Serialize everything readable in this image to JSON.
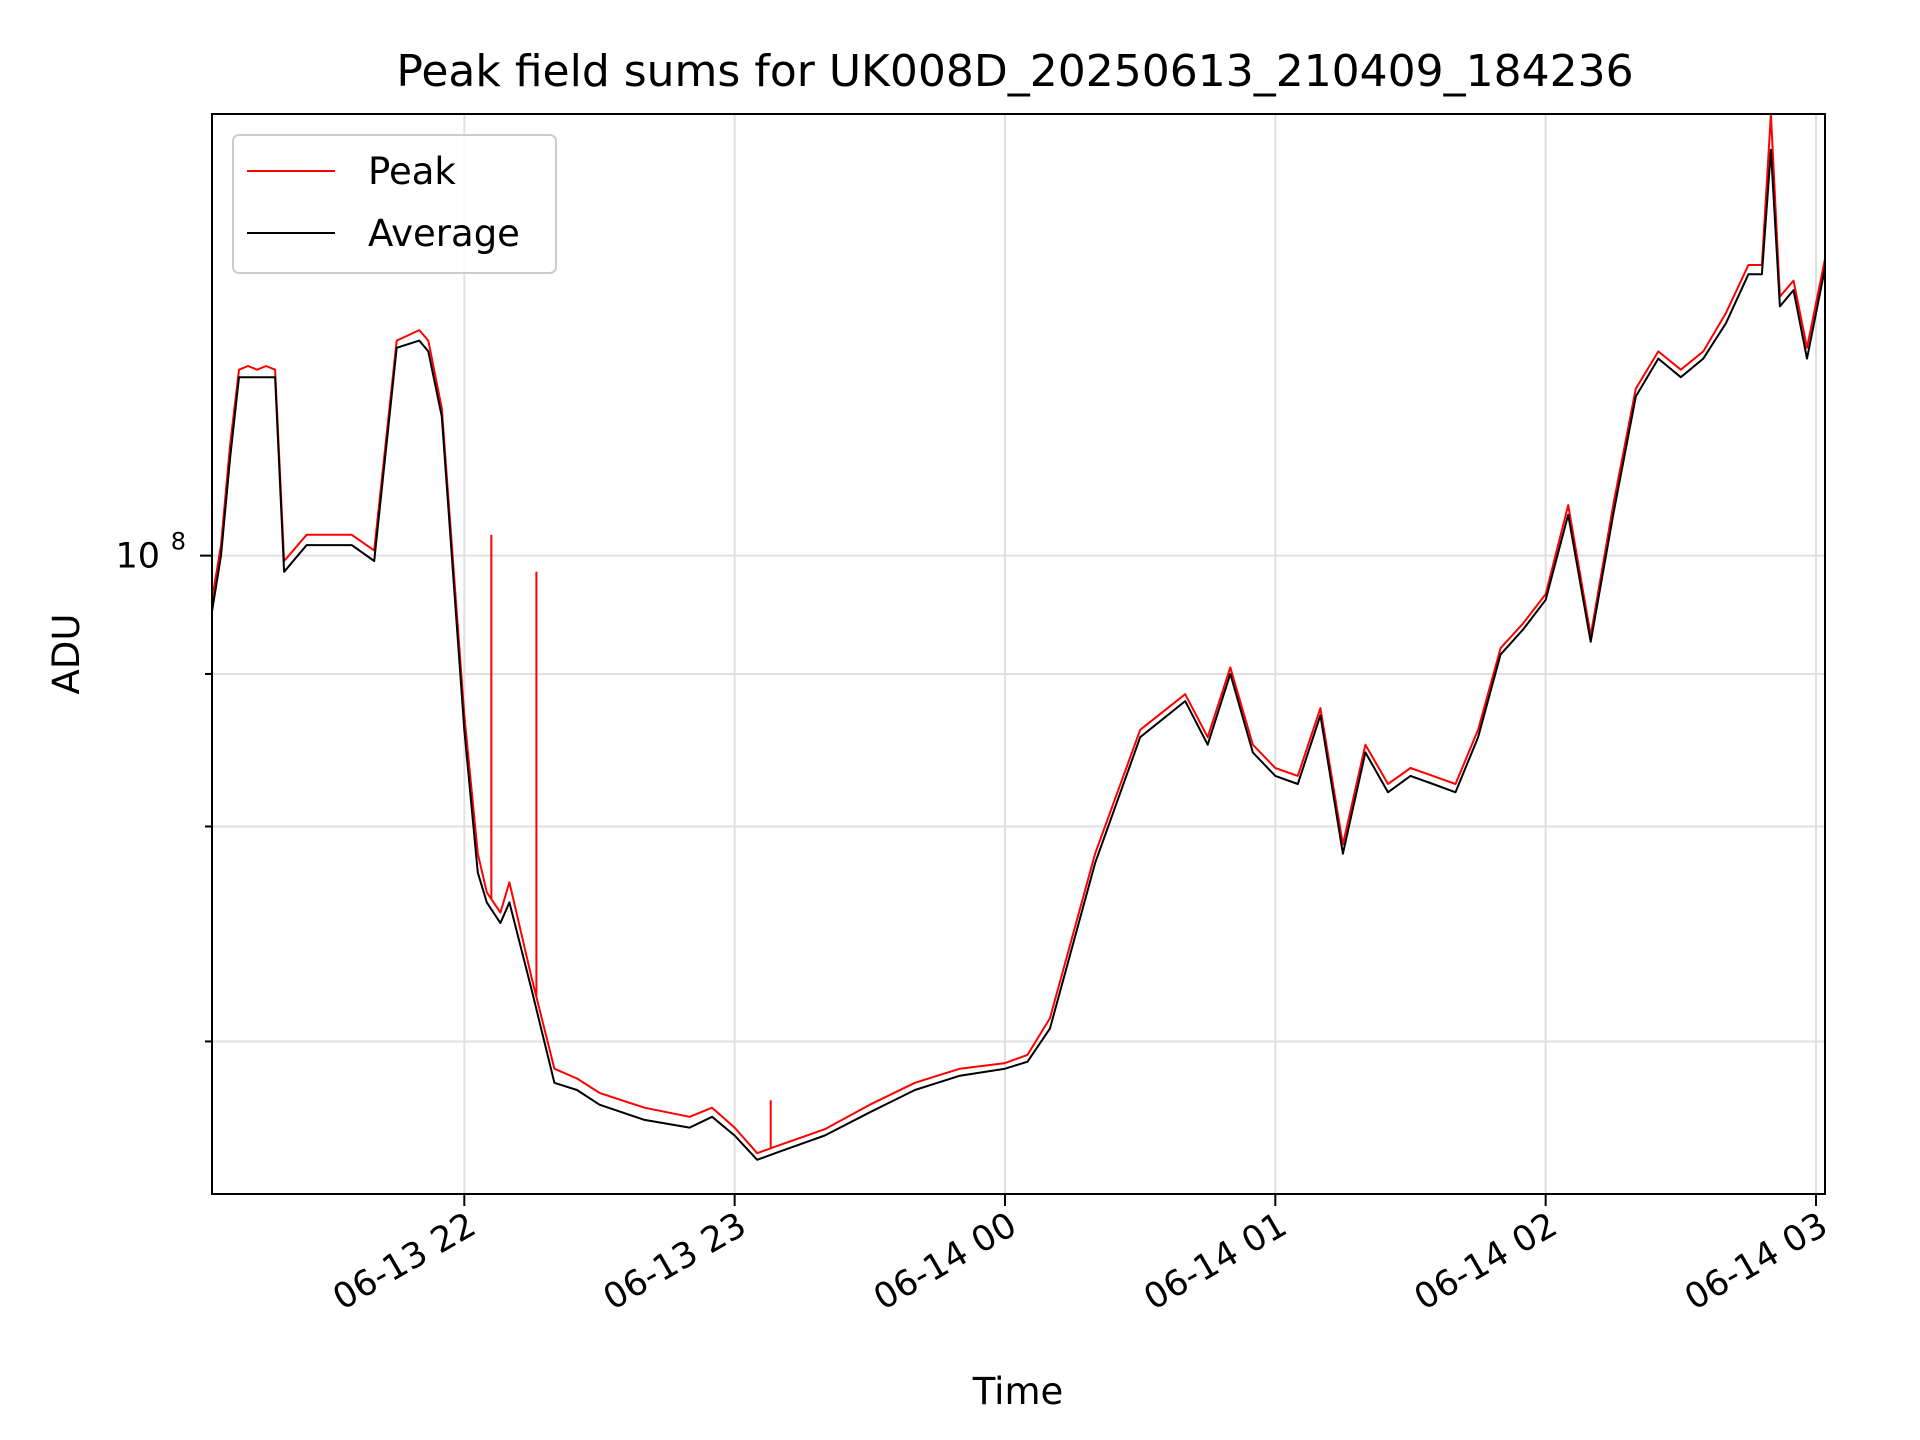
{
  "chart_data": {
    "type": "line",
    "title": "Peak field sums for UK008D_20250613_210409_184236",
    "xlabel": "Time",
    "ylabel": "ADU",
    "y_scale": "log",
    "xlim": [
      "2025-06-13 21:04",
      "2025-06-14 03:02"
    ],
    "ylim": [
      30000000,
      230000000
    ],
    "x_ticks": [
      "06-13 22",
      "06-13 23",
      "06-14 00",
      "06-14 01",
      "06-14 02",
      "06-14 03"
    ],
    "y_ticks": [
      {
        "label": "10",
        "exponent": "8",
        "value": 100000000
      }
    ],
    "grid": true,
    "legend_position": "top-left",
    "colors": {
      "Peak": "#ff0000",
      "Average": "#000000"
    },
    "series": [
      {
        "name": "Average",
        "x": [
          "2025-06-13 21:04",
          "2025-06-13 21:06",
          "2025-06-13 21:08",
          "2025-06-13 21:10",
          "2025-06-13 21:12",
          "2025-06-13 21:14",
          "2025-06-13 21:16",
          "2025-06-13 21:18",
          "2025-06-13 21:20",
          "2025-06-13 21:25",
          "2025-06-13 21:30",
          "2025-06-13 21:35",
          "2025-06-13 21:40",
          "2025-06-13 21:45",
          "2025-06-13 21:50",
          "2025-06-13 21:52",
          "2025-06-13 21:55",
          "2025-06-13 22:00",
          "2025-06-13 22:03",
          "2025-06-13 22:05",
          "2025-06-13 22:08",
          "2025-06-13 22:10",
          "2025-06-13 22:15",
          "2025-06-13 22:20",
          "2025-06-13 22:25",
          "2025-06-13 22:30",
          "2025-06-13 22:40",
          "2025-06-13 22:50",
          "2025-06-13 22:55",
          "2025-06-13 23:00",
          "2025-06-13 23:05",
          "2025-06-13 23:10",
          "2025-06-13 23:20",
          "2025-06-13 23:30",
          "2025-06-13 23:40",
          "2025-06-13 23:50",
          "2025-06-14 00:00",
          "2025-06-14 00:05",
          "2025-06-14 00:10",
          "2025-06-14 00:20",
          "2025-06-14 00:30",
          "2025-06-14 00:40",
          "2025-06-14 00:45",
          "2025-06-14 00:50",
          "2025-06-14 00:55",
          "2025-06-14 01:00",
          "2025-06-14 01:05",
          "2025-06-14 01:10",
          "2025-06-14 01:15",
          "2025-06-14 01:20",
          "2025-06-14 01:25",
          "2025-06-14 01:30",
          "2025-06-14 01:35",
          "2025-06-14 01:40",
          "2025-06-14 01:45",
          "2025-06-14 01:50",
          "2025-06-14 01:55",
          "2025-06-14 02:00",
          "2025-06-14 02:05",
          "2025-06-14 02:10",
          "2025-06-14 02:15",
          "2025-06-14 02:20",
          "2025-06-14 02:25",
          "2025-06-14 02:30",
          "2025-06-14 02:35",
          "2025-06-14 02:40",
          "2025-06-14 02:45",
          "2025-06-14 02:48",
          "2025-06-14 02:50",
          "2025-06-14 02:52",
          "2025-06-14 02:55",
          "2025-06-14 02:58",
          "2025-06-14 03:02"
        ],
        "values": [
          90000000,
          100000000,
          120000000,
          140000000,
          140000000,
          140000000,
          140000000,
          140000000,
          97000000,
          102000000,
          102000000,
          102000000,
          99000000,
          148000000,
          150000000,
          147000000,
          130000000,
          72000000,
          55000000,
          52000000,
          50000000,
          52000000,
          44000000,
          37000000,
          36500000,
          35500000,
          34500000,
          34000000,
          34700000,
          33500000,
          32000000,
          32500000,
          33500000,
          35000000,
          36500000,
          37500000,
          38000000,
          38500000,
          41000000,
          56000000,
          71000000,
          76000000,
          70000000,
          80000000,
          69000000,
          66000000,
          65000000,
          74000000,
          57000000,
          69000000,
          64000000,
          66000000,
          65000000,
          64000000,
          71000000,
          83000000,
          87000000,
          92000000,
          108000000,
          85000000,
          108000000,
          135000000,
          145000000,
          140000000,
          145000000,
          155000000,
          170000000,
          170000000,
          215000000,
          160000000,
          165000000,
          145000000,
          172000000
        ]
      },
      {
        "name": "Peak",
        "x": [
          "2025-06-13 21:04",
          "2025-06-13 21:06",
          "2025-06-13 21:08",
          "2025-06-13 21:10",
          "2025-06-13 21:12",
          "2025-06-13 21:14",
          "2025-06-13 21:16",
          "2025-06-13 21:18",
          "2025-06-13 21:20",
          "2025-06-13 21:25",
          "2025-06-13 21:30",
          "2025-06-13 21:35",
          "2025-06-13 21:40",
          "2025-06-13 21:45",
          "2025-06-13 21:50",
          "2025-06-13 21:52",
          "2025-06-13 21:55",
          "2025-06-13 22:00",
          "2025-06-13 22:03",
          "2025-06-13 22:05",
          "2025-06-13 22:08",
          "2025-06-13 22:10",
          "2025-06-13 22:15",
          "2025-06-13 22:20",
          "2025-06-13 22:25",
          "2025-06-13 22:30",
          "2025-06-13 22:40",
          "2025-06-13 22:50",
          "2025-06-13 22:55",
          "2025-06-13 23:00",
          "2025-06-13 23:05",
          "2025-06-13 23:10",
          "2025-06-13 23:20",
          "2025-06-13 23:30",
          "2025-06-13 23:40",
          "2025-06-13 23:50",
          "2025-06-14 00:00",
          "2025-06-14 00:05",
          "2025-06-14 00:10",
          "2025-06-14 00:20",
          "2025-06-14 00:30",
          "2025-06-14 00:40",
          "2025-06-14 00:45",
          "2025-06-14 00:50",
          "2025-06-14 00:55",
          "2025-06-14 01:00",
          "2025-06-14 01:05",
          "2025-06-14 01:10",
          "2025-06-14 01:15",
          "2025-06-14 01:20",
          "2025-06-14 01:25",
          "2025-06-14 01:30",
          "2025-06-14 01:35",
          "2025-06-14 01:40",
          "2025-06-14 01:45",
          "2025-06-14 01:50",
          "2025-06-14 01:55",
          "2025-06-14 02:00",
          "2025-06-14 02:05",
          "2025-06-14 02:10",
          "2025-06-14 02:15",
          "2025-06-14 02:20",
          "2025-06-14 02:25",
          "2025-06-14 02:30",
          "2025-06-14 02:35",
          "2025-06-14 02:40",
          "2025-06-14 02:45",
          "2025-06-14 02:48",
          "2025-06-14 02:50",
          "2025-06-14 02:52",
          "2025-06-14 02:55",
          "2025-06-14 02:58",
          "2025-06-14 03:02"
        ],
        "values": [
          92000000,
          102000000,
          123000000,
          142000000,
          143000000,
          142000000,
          143000000,
          142000000,
          99000000,
          104000000,
          104000000,
          104000000,
          101000000,
          150000000,
          153000000,
          150000000,
          132000000,
          74000000,
          57000000,
          53000000,
          51000000,
          54000000,
          45000000,
          38000000,
          37300000,
          36300000,
          35300000,
          34700000,
          35300000,
          34000000,
          32400000,
          32900000,
          33900000,
          35500000,
          37000000,
          38000000,
          38400000,
          39000000,
          41800000,
          57000000,
          72000000,
          77000000,
          71000000,
          81000000,
          70000000,
          67000000,
          66000000,
          75000000,
          58000000,
          70000000,
          65000000,
          67000000,
          66000000,
          65000000,
          72000000,
          84000000,
          88000000,
          93000000,
          110000000,
          86000000,
          110000000,
          137000000,
          147000000,
          142000000,
          147000000,
          158000000,
          173000000,
          173000000,
          230000000,
          163000000,
          168000000,
          148000000,
          175000000
        ]
      }
    ],
    "annotations": [
      {
        "series": "Peak",
        "x": "2025-06-13 22:06",
        "value": 104000000
      },
      {
        "series": "Peak",
        "x": "2025-06-13 22:16",
        "value": 97000000
      },
      {
        "series": "Peak",
        "x": "2025-06-13 23:08",
        "value": 35800000
      }
    ]
  }
}
